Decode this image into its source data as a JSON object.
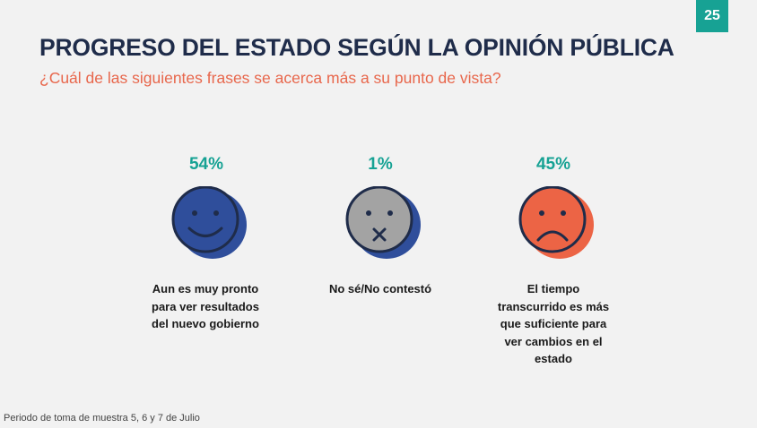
{
  "page_number": "25",
  "title": "PROGRESO DEL ESTADO SEGÚN LA OPINIÓN PÚBLICA",
  "subtitle": "¿Cuál de las siguientes frases se acerca más a su punto de vista?",
  "footnote": "Periodo de toma de muestra 5, 6 y 7 de Julio",
  "colors": {
    "accent_teal": "#17a294",
    "title_navy": "#1f2c4a",
    "subtitle_orange": "#e8674c",
    "happy_face": "#2f4e9b",
    "neutral_face": "#a3a3a3",
    "sad_face": "#ec6445"
  },
  "chart_data": {
    "type": "pictogram",
    "title": "PROGRESO DEL ESTADO SEGÚN LA OPINIÓN PÚBLICA",
    "subtitle": "¿Cuál de las siguientes frases se acerca más a su punto de vista?",
    "unit": "%",
    "categories": [
      {
        "value": 54,
        "display": "54%",
        "icon": "happy-face-icon",
        "color": "#2f4e9b",
        "label_lines": [
          "Aun es muy pronto",
          "para ver resultados",
          "del nuevo gobierno"
        ]
      },
      {
        "value": 1,
        "display": "1%",
        "icon": "silent-face-icon",
        "color": "#a3a3a3",
        "label_lines": [
          "No sé/No contestó"
        ]
      },
      {
        "value": 45,
        "display": "45%",
        "icon": "sad-face-icon",
        "color": "#ec6445",
        "label_lines": [
          "El tiempo",
          "transcurrido es más",
          "que suficiente para",
          "ver cambios en el",
          "estado"
        ]
      }
    ]
  }
}
